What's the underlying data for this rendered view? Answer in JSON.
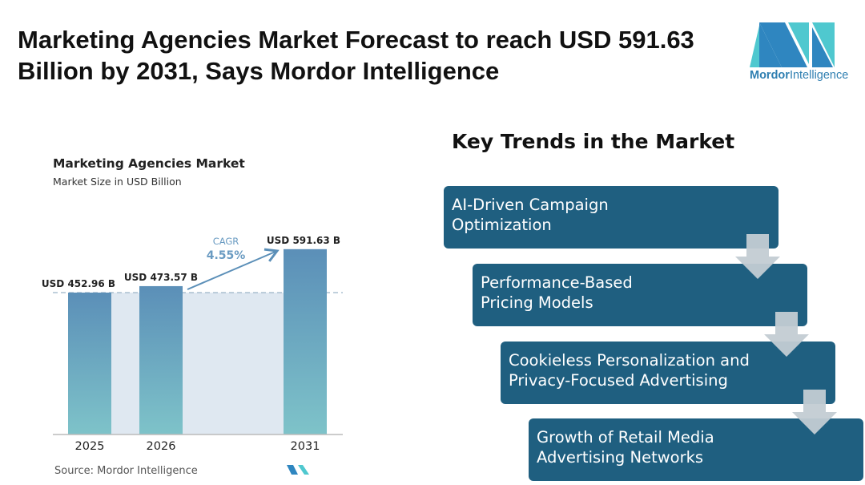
{
  "title": "Marketing Agencies Market Forecast to reach USD 591.63 Billion by 2031, Says Mordor Intelligence",
  "logo": {
    "name_bold": "Mordor",
    "name_light": "Intelligence"
  },
  "chart_data": {
    "type": "bar",
    "title": "Marketing Agencies Market",
    "subtitle": "Market Size in USD Billion",
    "categories": [
      "2025",
      "2026",
      "2031"
    ],
    "values": [
      452.96,
      473.57,
      591.63
    ],
    "data_labels": [
      "USD 452.96 B",
      "USD 473.57 B",
      "USD 591.63 B"
    ],
    "ylim": [
      0,
      600
    ],
    "annotation": {
      "label": "CAGR",
      "value": "4.55%"
    },
    "source": "Source: Mordor Intelligence"
  },
  "trends": {
    "heading": "Key Trends in the Market",
    "items": [
      "AI-Driven Campaign Optimization",
      "Performance-Based Pricing Models",
      "Cookieless Personalization and Privacy-Focused Advertising",
      "Growth of Retail Media Advertising Networks"
    ]
  },
  "colors": {
    "box": "#1f5f80",
    "bar_top": "#5b8fb8",
    "bar_bottom": "#7ec3c9"
  }
}
